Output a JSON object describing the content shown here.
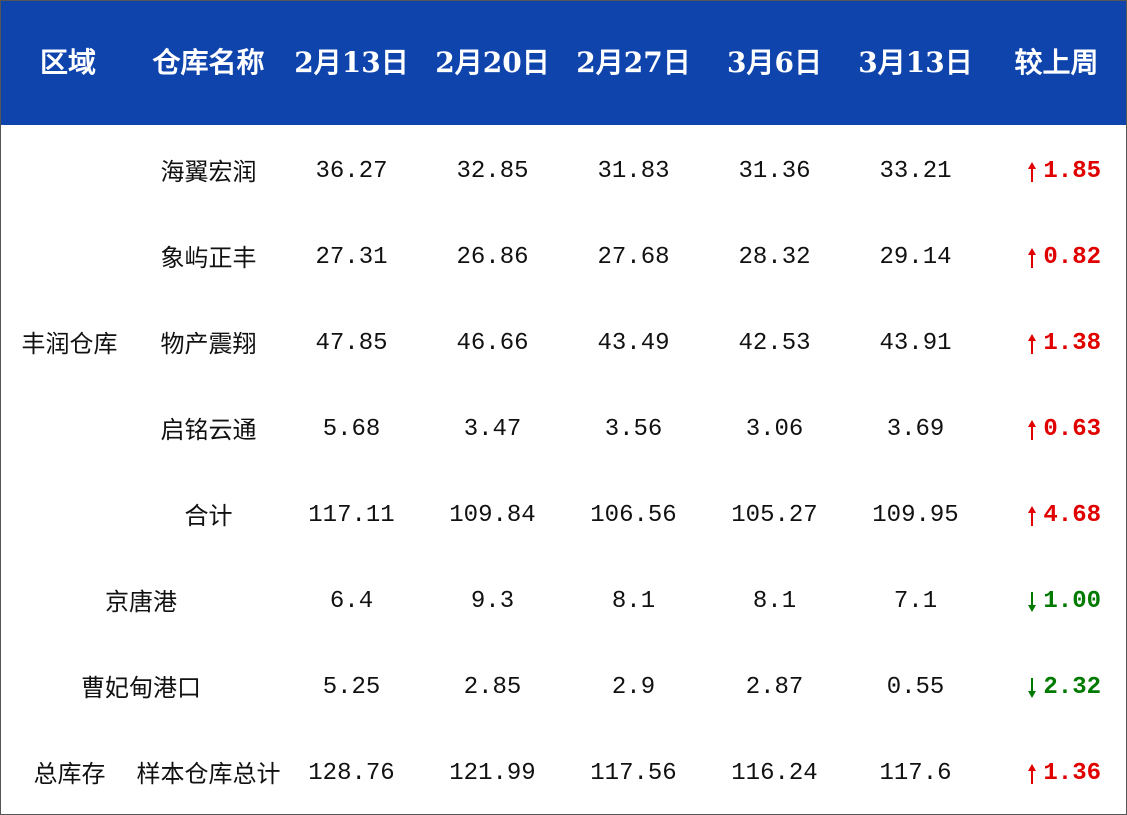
{
  "header": [
    "区域",
    "仓库名称",
    "2月13日",
    "2月20日",
    "2月27日",
    "3月6日",
    "3月13日",
    "较上周"
  ],
  "sections": [
    {
      "region": "丰润仓库",
      "rows": [
        {
          "warehouse": "海翼宏润",
          "values": [
            "36.27",
            "32.85",
            "31.83",
            "31.36",
            "33.21"
          ],
          "change": {
            "direction": "up",
            "value": "1.85"
          }
        },
        {
          "warehouse": "象屿正丰",
          "values": [
            "27.31",
            "26.86",
            "27.68",
            "28.32",
            "29.14"
          ],
          "change": {
            "direction": "up",
            "value": "0.82"
          }
        },
        {
          "warehouse": "物产震翔",
          "values": [
            "47.85",
            "46.66",
            "43.49",
            "42.53",
            "43.91"
          ],
          "change": {
            "direction": "up",
            "value": "1.38"
          }
        },
        {
          "warehouse": "启铭云通",
          "values": [
            "5.68",
            "3.47",
            "3.56",
            "3.06",
            "3.69"
          ],
          "change": {
            "direction": "up",
            "value": "0.63"
          }
        },
        {
          "warehouse": "合计",
          "values": [
            "117.11",
            "109.84",
            "106.56",
            "105.27",
            "109.95"
          ],
          "change": {
            "direction": "up",
            "value": "4.68"
          }
        }
      ]
    },
    {
      "rows": [
        {
          "warehouse": "京唐港",
          "values": [
            "6.4",
            "9.3",
            "8.1",
            "8.1",
            "7.1"
          ],
          "change": {
            "direction": "down",
            "value": "1.00"
          }
        }
      ]
    },
    {
      "rows": [
        {
          "warehouse": "曹妃甸港口",
          "values": [
            "5.25",
            "2.85",
            "2.9",
            "2.87",
            "0.55"
          ],
          "change": {
            "direction": "down",
            "value": "2.32"
          }
        }
      ]
    },
    {
      "region": "总库存",
      "rows": [
        {
          "warehouse": "样本仓库总计",
          "values": [
            "128.76",
            "121.99",
            "117.56",
            "116.24",
            "117.6"
          ],
          "change": {
            "direction": "up",
            "value": "1.36"
          }
        }
      ]
    }
  ]
}
